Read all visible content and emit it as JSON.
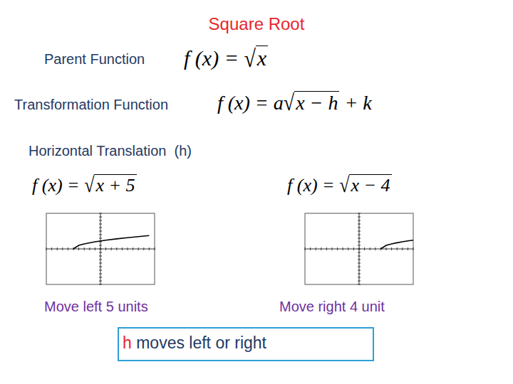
{
  "slide": {
    "title": "Square Root",
    "parent_label": "Parent Function",
    "parent_formula": {
      "lhs": "f (x) = ",
      "radical": "√",
      "radicand": "x"
    },
    "transform_label": "Transformation Function",
    "transform_formula": {
      "lhs": "f (x) = ",
      "coef": "a",
      "radical": "√",
      "radicand": "x − h",
      "tail": " + k"
    },
    "section": "Horizontal Translation  (h)",
    "graphs": [
      {
        "formula": {
          "lhs": "f (x) = ",
          "radical": "√",
          "radicand": "x + 5"
        },
        "caption": "Move left 5 units"
      },
      {
        "formula": {
          "lhs": "f (x) = ",
          "radical": "√",
          "radicand": "x − 4"
        },
        "caption": "Move right 4 unit"
      }
    ],
    "summary": {
      "variable": "h",
      "text": " moves left or right"
    }
  },
  "chart_data": [
    {
      "type": "line",
      "x": [
        -5,
        -4,
        -3,
        -1,
        1,
        3,
        5,
        7,
        9
      ],
      "values": [
        0,
        1,
        1.41,
        2,
        2.45,
        2.83,
        3.16,
        3.46,
        3.74
      ],
      "xlim": [
        -10,
        10
      ],
      "ylim": [
        -10,
        10
      ],
      "xticks": [
        -10,
        -9,
        -8,
        -7,
        -6,
        -5,
        -4,
        -3,
        -2,
        -1,
        0,
        1,
        2,
        3,
        4,
        5,
        6,
        7,
        8,
        9,
        10
      ],
      "yticks": [
        -10,
        -9,
        -8,
        -7,
        -6,
        -5,
        -4,
        -3,
        -2,
        -1,
        0,
        1,
        2,
        3,
        4,
        5,
        6,
        7,
        8,
        9,
        10
      ],
      "tick_labels": false,
      "grid": false,
      "color": "#000000"
    },
    {
      "type": "line",
      "x": [
        4,
        5,
        6,
        7,
        8,
        9,
        10
      ],
      "values": [
        0,
        1,
        1.41,
        1.73,
        2,
        2.24,
        2.45
      ],
      "xlim": [
        -10,
        10
      ],
      "ylim": [
        -10,
        10
      ],
      "xticks": [
        -10,
        -9,
        -8,
        -7,
        -6,
        -5,
        -4,
        -3,
        -2,
        -1,
        0,
        1,
        2,
        3,
        4,
        5,
        6,
        7,
        8,
        9,
        10
      ],
      "yticks": [
        -10,
        -9,
        -8,
        -7,
        -6,
        -5,
        -4,
        -3,
        -2,
        -1,
        0,
        1,
        2,
        3,
        4,
        5,
        6,
        7,
        8,
        9,
        10
      ],
      "tick_labels": false,
      "grid": false,
      "color": "#000000"
    }
  ]
}
